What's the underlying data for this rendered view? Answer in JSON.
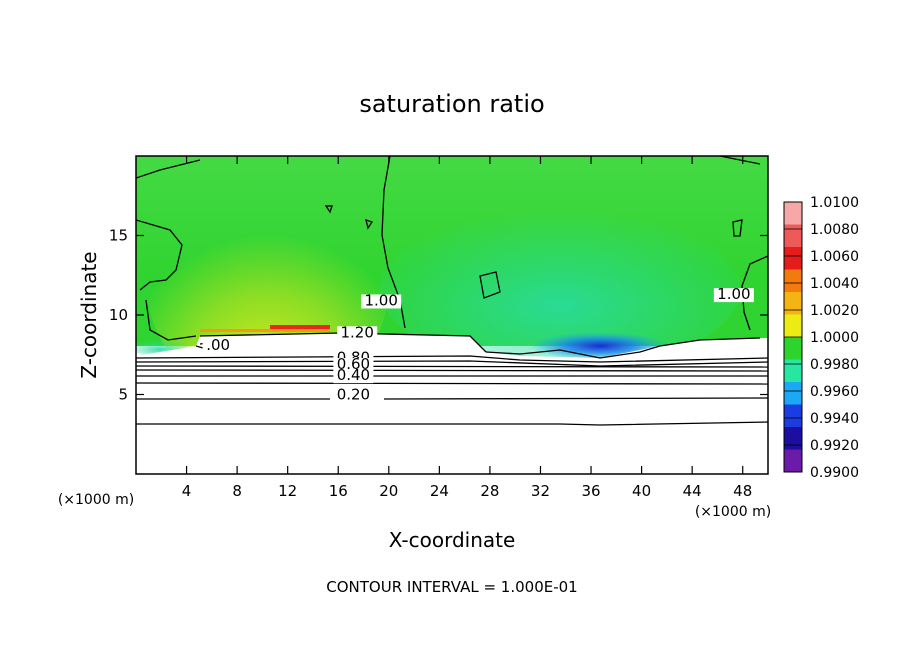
{
  "chart_data": {
    "type": "heatmap",
    "title": "saturation ratio",
    "xlabel": "X-coordinate",
    "ylabel": "Z-coordinate",
    "x_unit_left": "(×1000 m)",
    "x_unit_right": "(×1000 m)",
    "xlim": [
      0,
      50
    ],
    "ylim": [
      0,
      20
    ],
    "x_ticks": [
      4,
      8,
      12,
      16,
      20,
      24,
      28,
      32,
      36,
      40,
      44,
      48
    ],
    "y_ticks": [
      5,
      10,
      15
    ],
    "colorbar": {
      "levels": [
        "1.0100",
        "1.0080",
        "1.0060",
        "1.0040",
        "1.0020",
        "1.0000",
        "0.9980",
        "0.9960",
        "0.9940",
        "0.9920",
        "0.9900"
      ],
      "colors": [
        "#f6a8a8",
        "#ee5a5a",
        "#e41c1c",
        "#f47a10",
        "#f3b414",
        "#ecec14",
        "#2ed42e",
        "#27e6a2",
        "#1ca8f4",
        "#1a3ce0",
        "#1c0ea0",
        "#6a1ca8"
      ]
    },
    "contour_labels": [
      {
        "text": "1.20",
        "x": 17.5,
        "y": 8.6
      },
      {
        "text": "0.80",
        "x": 17.2,
        "y": 7.0
      },
      {
        "text": "0.60",
        "x": 17.2,
        "y": 6.6
      },
      {
        "text": "0.40",
        "x": 17.2,
        "y": 5.9
      },
      {
        "text": "0.20",
        "x": 17.2,
        "y": 4.7
      },
      {
        "text": "1.00",
        "x": 19.4,
        "y": 10.6
      },
      {
        "text": "1.00",
        "x": 47.3,
        "y": 11.0
      },
      {
        "text": ".00",
        "x": 6.5,
        "y": 7.8
      }
    ],
    "contour_interval_text": "CONTOUR INTERVAL = 1.000E-01"
  }
}
